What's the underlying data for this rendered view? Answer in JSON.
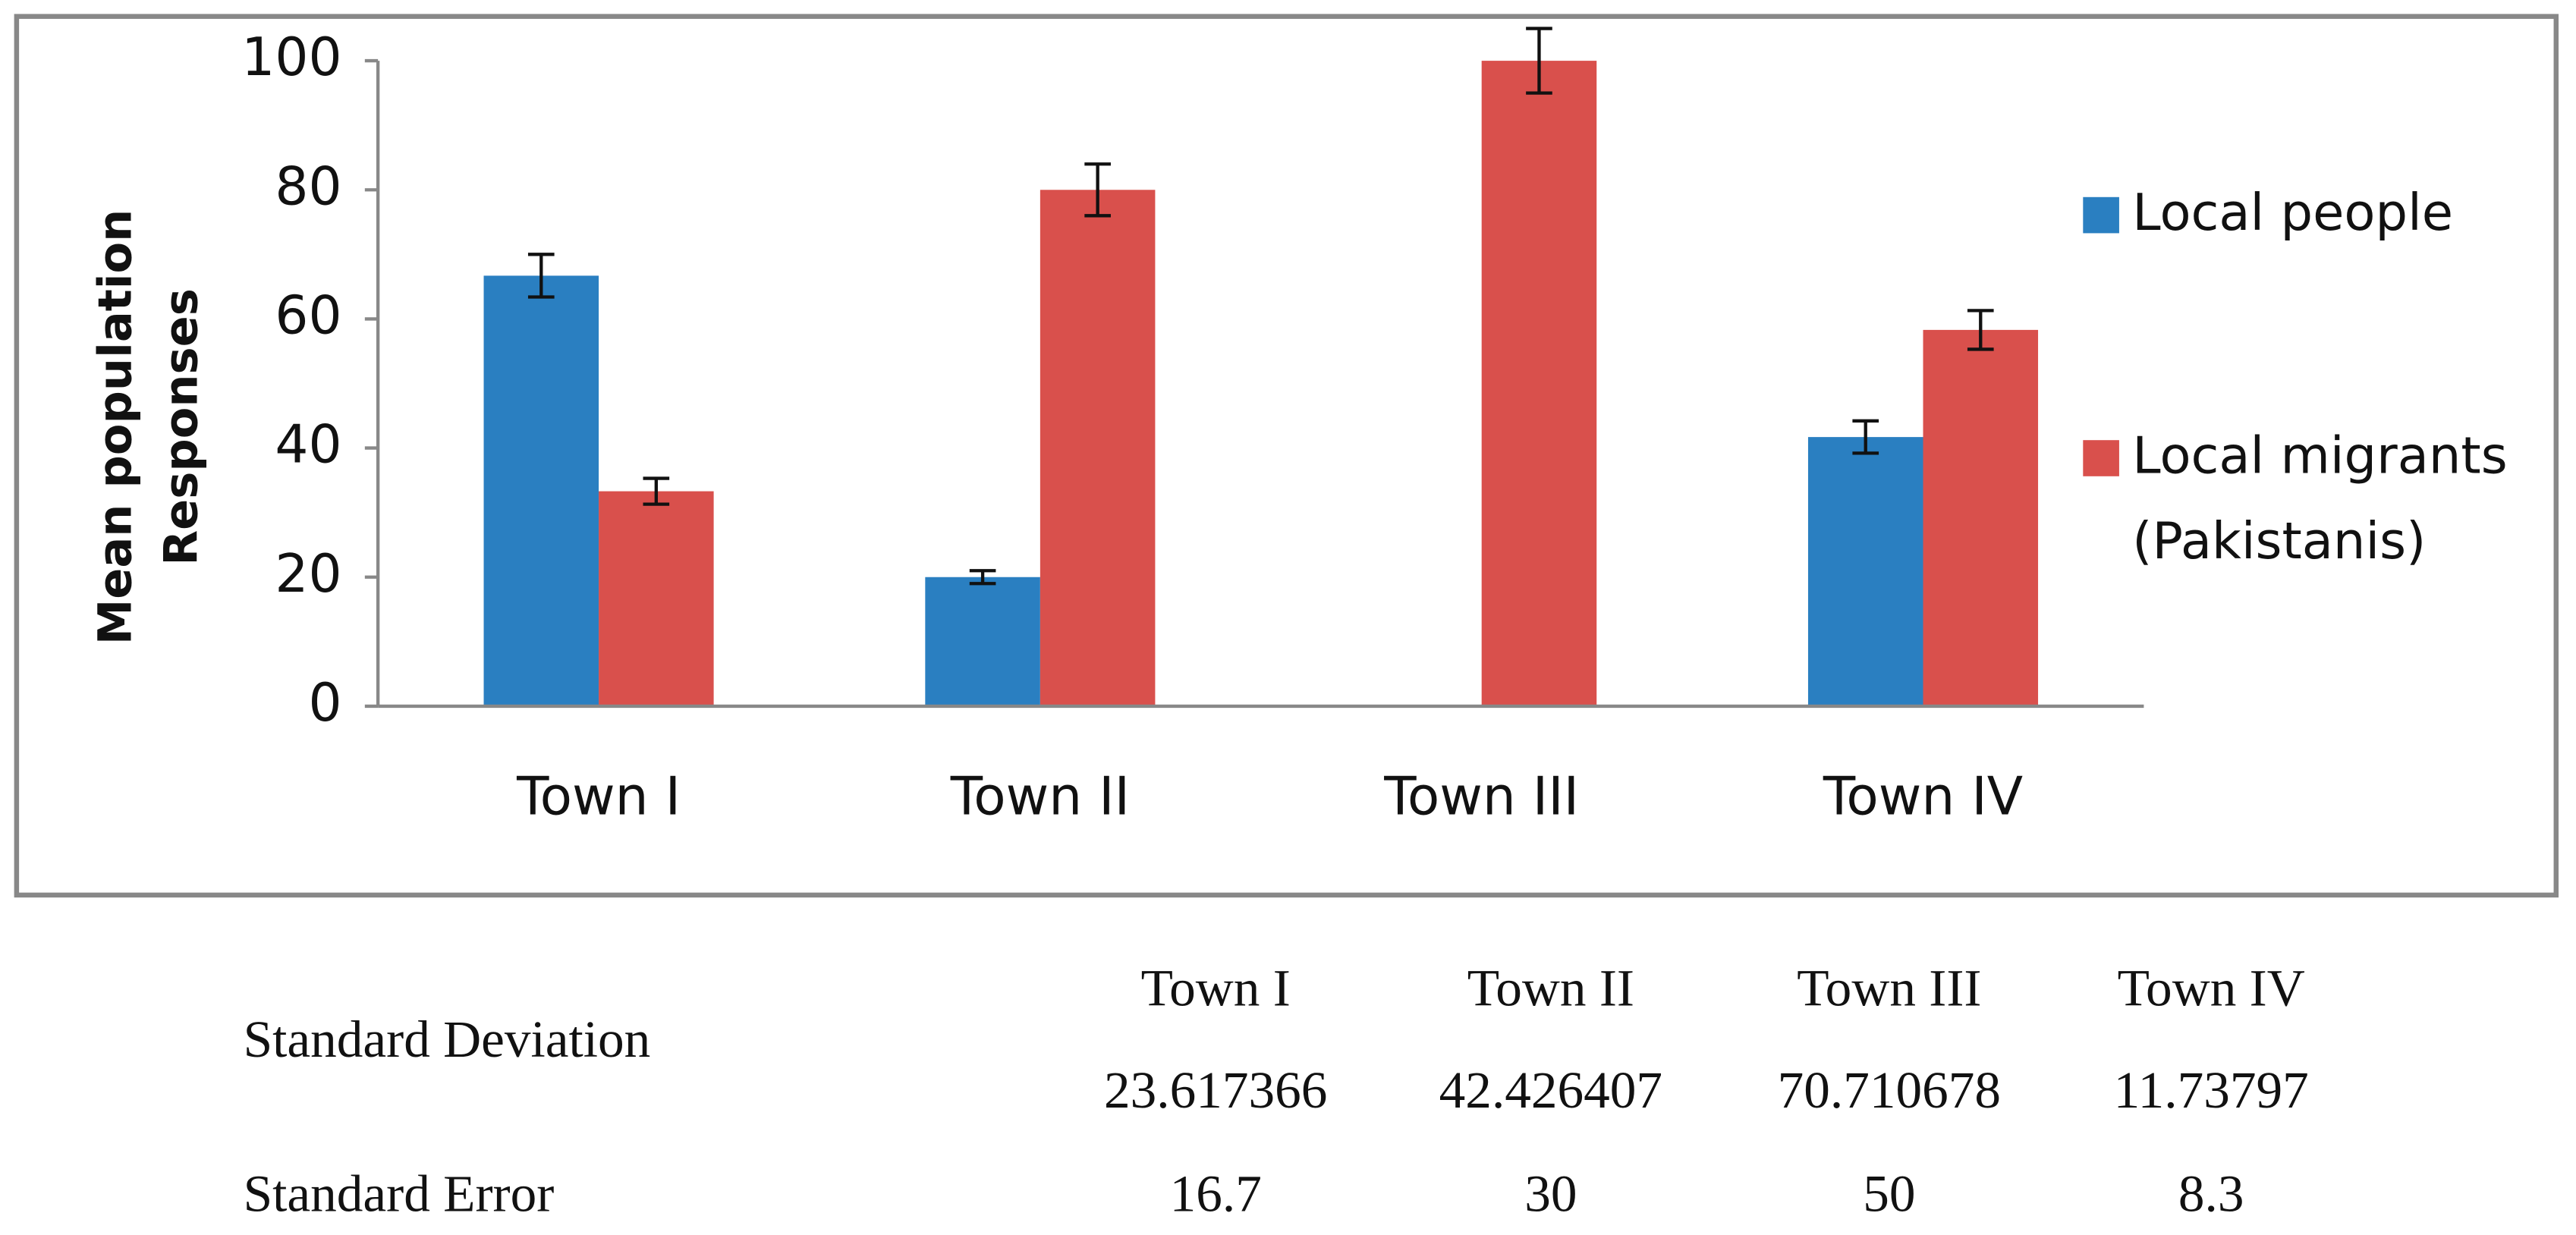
{
  "chart_data": {
    "type": "bar",
    "ylabel_lines": [
      "Mean population",
      "Responses"
    ],
    "categories": [
      "Town I",
      "Town II",
      "Town III",
      "Town IV"
    ],
    "series": [
      {
        "name": "Local people",
        "color": "#2a7fc1",
        "values": [
          66.7,
          20,
          0,
          41.7
        ],
        "errors": [
          3.3,
          1,
          null,
          2.5
        ]
      },
      {
        "name": "Local migrants (Pakistanis)",
        "color": "#d9504c",
        "values": [
          33.3,
          80,
          100,
          58.3
        ],
        "errors": [
          2,
          4,
          5,
          3
        ]
      }
    ],
    "ylim": [
      0,
      100
    ],
    "yticks": [
      0,
      20,
      40,
      60,
      80,
      100
    ],
    "legend": "right"
  },
  "table": {
    "header": [
      "Town I",
      "Town II",
      "Town III",
      "Town IV"
    ],
    "rows": [
      {
        "label": "Standard Deviation",
        "cells": [
          23.617366,
          42.426407,
          70.710678,
          11.73797
        ]
      },
      {
        "label": "Standard Error",
        "cells": [
          16.7,
          30,
          50,
          8.3
        ]
      }
    ]
  }
}
